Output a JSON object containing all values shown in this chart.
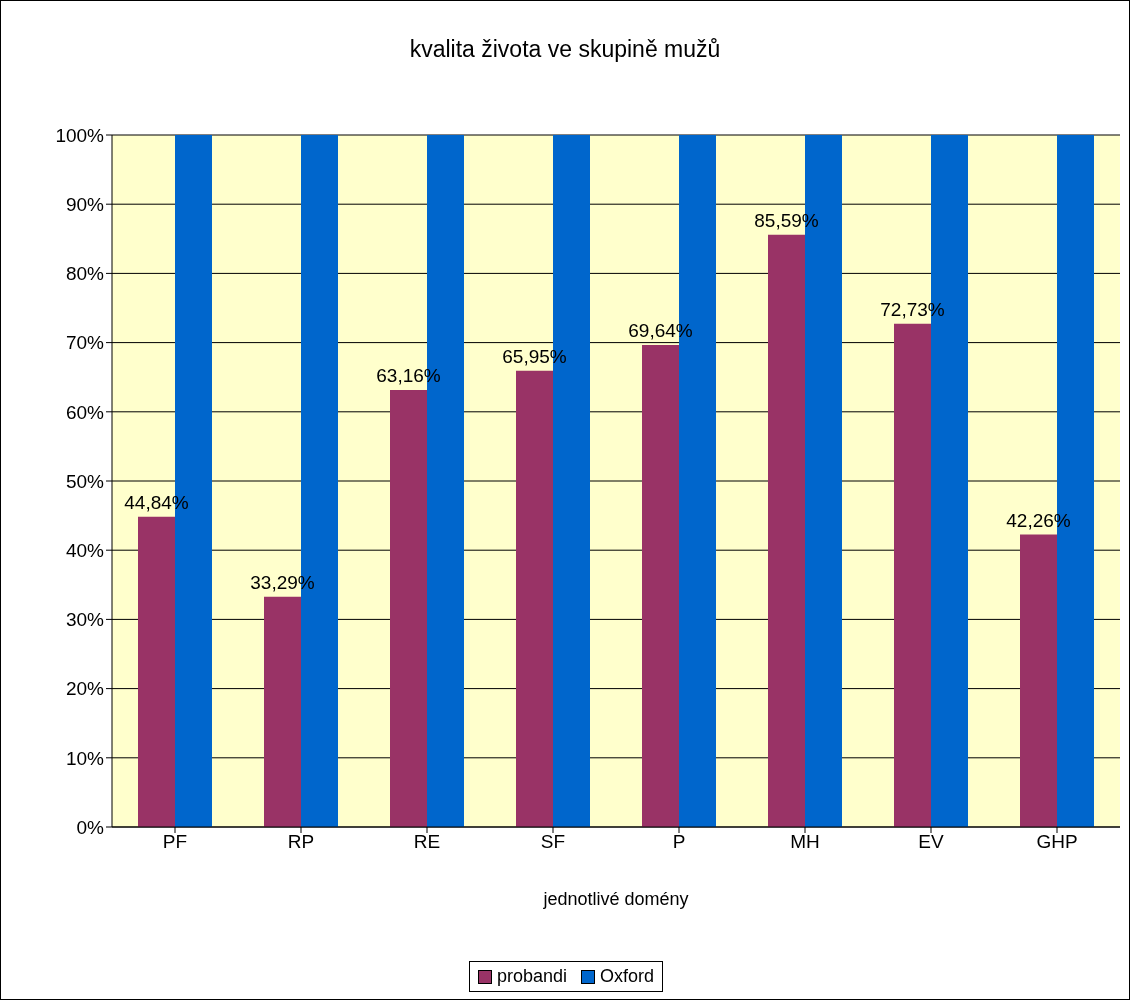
{
  "chart_data": {
    "type": "bar",
    "title": "kvalita života ve skupině mužů",
    "xlabel": "jednotlivé domény",
    "categories": [
      "PF",
      "RP",
      "RE",
      "SF",
      "P",
      "MH",
      "EV",
      "GHP"
    ],
    "series": [
      {
        "name": "probandi",
        "color": "#993366",
        "values": [
          44.84,
          33.29,
          63.16,
          65.95,
          69.64,
          85.59,
          72.73,
          42.26
        ],
        "value_labels": [
          "44,84%",
          "33,29%",
          "63,16%",
          "65,95%",
          "69,64%",
          "85,59%",
          "72,73%",
          "42,26%"
        ]
      },
      {
        "name": "Oxford",
        "color": "#0066cc",
        "values": [
          100,
          100,
          100,
          100,
          100,
          100,
          100,
          100
        ]
      }
    ],
    "ylim": [
      0,
      100
    ],
    "yticks": [
      {
        "value": 0,
        "label": "0%"
      },
      {
        "value": 10,
        "label": "10%"
      },
      {
        "value": 20,
        "label": "20%"
      },
      {
        "value": 30,
        "label": "30%"
      },
      {
        "value": 40,
        "label": "40%"
      },
      {
        "value": 50,
        "label": "50%"
      },
      {
        "value": 60,
        "label": "60%"
      },
      {
        "value": 70,
        "label": "70%"
      },
      {
        "value": 80,
        "label": "80%"
      },
      {
        "value": 90,
        "label": "90%"
      },
      {
        "value": 100,
        "label": "100%"
      }
    ],
    "grid": "y",
    "legend": "bottom"
  }
}
